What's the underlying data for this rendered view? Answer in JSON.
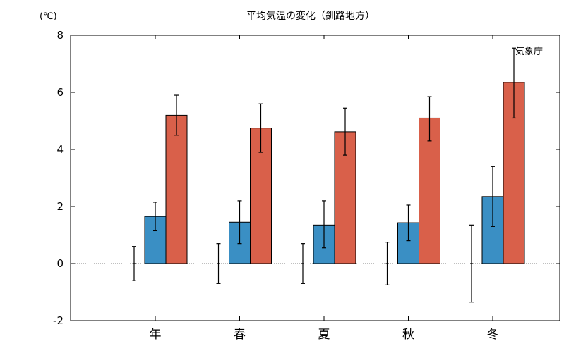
{
  "chart_data": {
    "type": "bar",
    "title": "平均気温の変化（釧路地方）",
    "unit_label": "(℃)",
    "credit": "気象庁",
    "categories": [
      "年",
      "春",
      "夏",
      "秋",
      "冬"
    ],
    "ylim": [
      -2,
      8
    ],
    "yticks": [
      -2,
      0,
      2,
      4,
      6,
      8
    ],
    "series": [
      {
        "color": "#ffffff",
        "values": [
          0,
          0,
          0,
          0,
          0
        ],
        "err_low": [
          -0.6,
          -0.7,
          -0.7,
          -0.75,
          -1.35
        ],
        "err_high": [
          0.6,
          0.7,
          0.7,
          0.75,
          1.35
        ]
      },
      {
        "color": "#3a8fc4",
        "values": [
          1.65,
          1.45,
          1.35,
          1.43,
          2.35
        ],
        "err_low": [
          1.15,
          0.7,
          0.55,
          0.8,
          1.3
        ],
        "err_high": [
          2.15,
          2.2,
          2.2,
          2.05,
          3.4
        ]
      },
      {
        "color": "#d9604a",
        "values": [
          5.2,
          4.75,
          4.62,
          5.1,
          6.35
        ],
        "err_low": [
          4.5,
          3.9,
          3.8,
          4.3,
          5.1
        ],
        "err_high": [
          5.9,
          5.6,
          5.45,
          5.85,
          7.55
        ]
      }
    ],
    "zero_line": "dotted",
    "grid": false
  }
}
